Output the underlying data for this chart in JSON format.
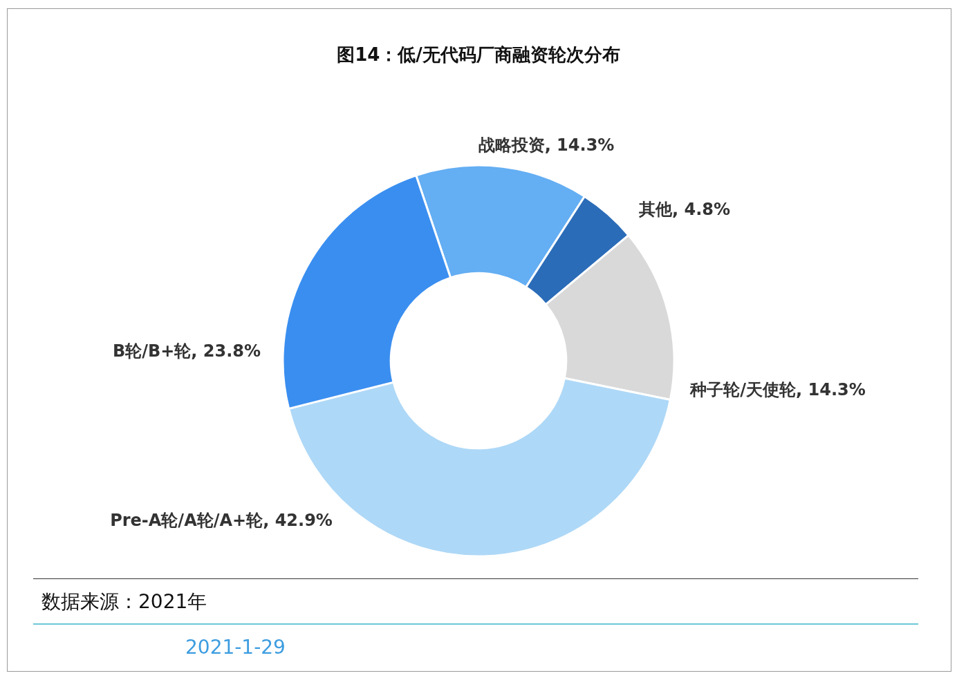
{
  "chart_data": {
    "type": "donut",
    "title": "图14：低/无代码厂商融资轮次分布",
    "categories": [
      "战略投资",
      "其他",
      "种子轮/天使轮",
      "Pre-A轮/A轮/A+轮",
      "B轮/B+轮"
    ],
    "values": [
      14.3,
      4.8,
      14.3,
      42.9,
      23.8
    ],
    "colors": [
      "#64aef3",
      "#2b6cb8",
      "#d9d9d9",
      "#aed8f7",
      "#3a8ef0"
    ],
    "value_labels": [
      "14.3%",
      "4.8%",
      "14.3%",
      "42.9%",
      "23.8%"
    ],
    "legend": false,
    "annotations": [
      "数据来源：2021年",
      "2021-1-29"
    ]
  }
}
